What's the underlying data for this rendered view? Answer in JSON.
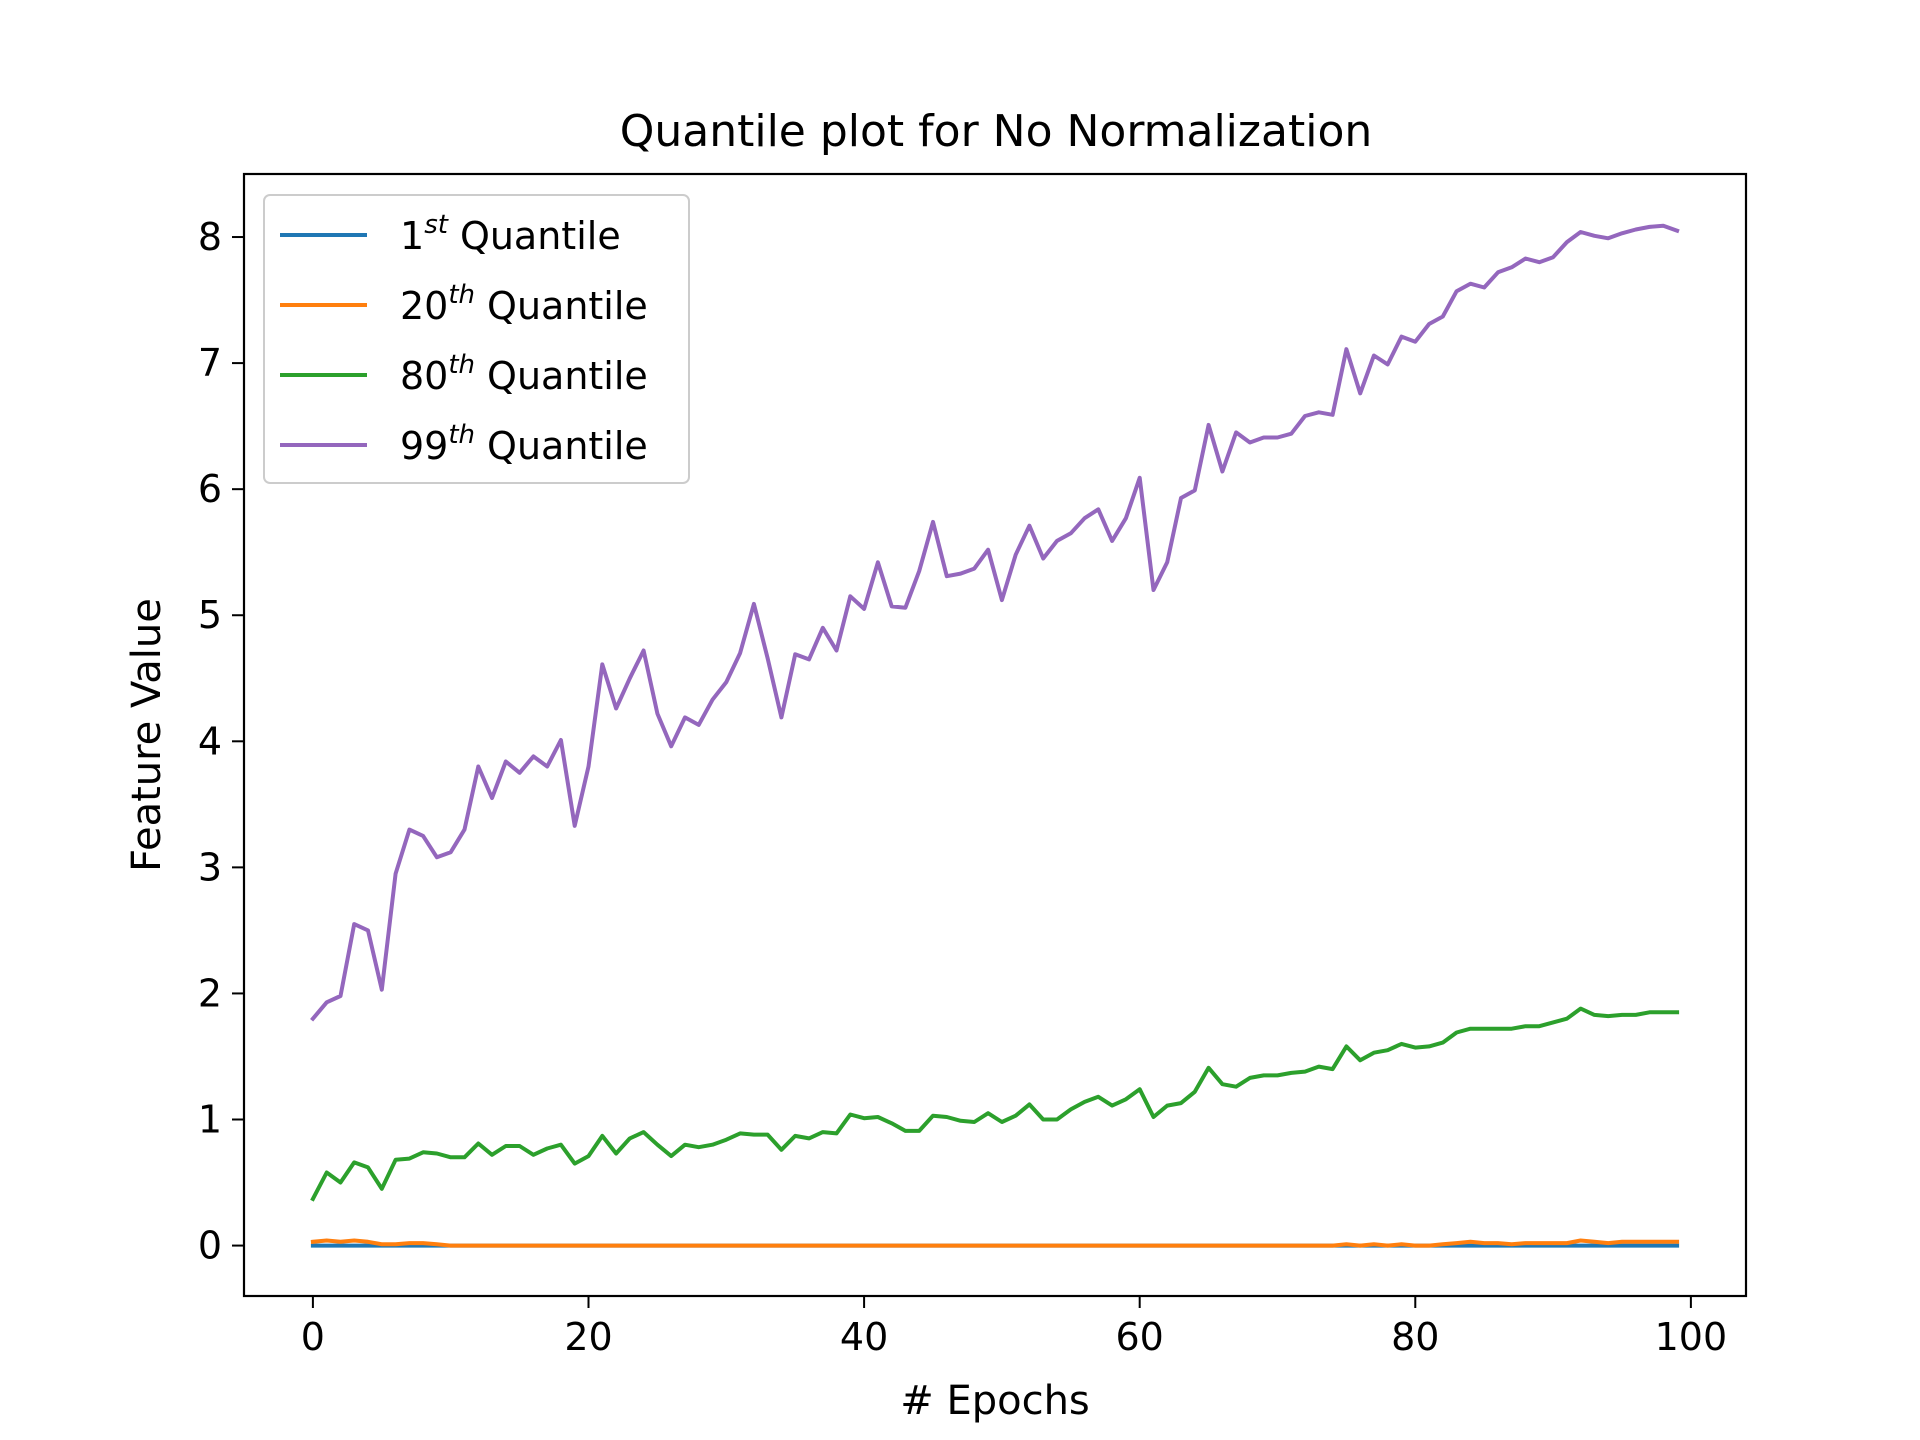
{
  "chart_data": {
    "type": "line",
    "title": "Quantile plot for No Normalization",
    "xlabel": "# Epochs",
    "ylabel": "Feature Value",
    "xlim": [
      -5,
      104
    ],
    "ylim": [
      -0.4,
      8.5
    ],
    "xticks": [
      0,
      20,
      40,
      60,
      80,
      100
    ],
    "yticks": [
      0,
      1,
      2,
      3,
      4,
      5,
      6,
      7,
      8
    ],
    "grid": false,
    "legend_position": "top-left",
    "legend": [
      {
        "base": "1",
        "sup": "st",
        "text": "Quantile"
      },
      {
        "base": "20",
        "sup": "th",
        "text": "Quantile"
      },
      {
        "base": "80",
        "sup": "th",
        "text": "Quantile"
      },
      {
        "base": "99",
        "sup": "th",
        "text": "Quantile"
      }
    ],
    "x": [
      0,
      1,
      2,
      3,
      4,
      5,
      6,
      7,
      8,
      9,
      10,
      11,
      12,
      13,
      14,
      15,
      16,
      17,
      18,
      19,
      20,
      21,
      22,
      23,
      24,
      25,
      26,
      27,
      28,
      29,
      30,
      31,
      32,
      33,
      34,
      35,
      36,
      37,
      38,
      39,
      40,
      41,
      42,
      43,
      44,
      45,
      46,
      47,
      48,
      49,
      50,
      51,
      52,
      53,
      54,
      55,
      56,
      57,
      58,
      59,
      60,
      61,
      62,
      63,
      64,
      65,
      66,
      67,
      68,
      69,
      70,
      71,
      72,
      73,
      74,
      75,
      76,
      77,
      78,
      79,
      80,
      81,
      82,
      83,
      84,
      85,
      86,
      87,
      88,
      89,
      90,
      91,
      92,
      93,
      94,
      95,
      96,
      97,
      98,
      99
    ],
    "series": [
      {
        "color": "#1f77b4",
        "values": [
          0,
          0,
          0,
          0,
          0,
          0,
          0,
          0,
          0,
          0,
          0,
          0,
          0,
          0,
          0,
          0,
          0,
          0,
          0,
          0,
          0,
          0,
          0,
          0,
          0,
          0,
          0,
          0,
          0,
          0,
          0,
          0,
          0,
          0,
          0,
          0,
          0,
          0,
          0,
          0,
          0,
          0,
          0,
          0,
          0,
          0,
          0,
          0,
          0,
          0,
          0,
          0,
          0,
          0,
          0,
          0,
          0,
          0,
          0,
          0,
          0,
          0,
          0,
          0,
          0,
          0,
          0,
          0,
          0,
          0,
          0,
          0,
          0,
          0,
          0,
          0,
          0,
          0,
          0,
          0,
          0,
          0,
          0,
          0,
          0,
          0,
          0,
          0,
          0,
          0,
          0,
          0,
          0,
          0,
          0,
          0,
          0,
          0,
          0,
          0
        ]
      },
      {
        "color": "#ff7f0e",
        "values": [
          0.03,
          0.04,
          0.03,
          0.04,
          0.03,
          0.01,
          0.01,
          0.02,
          0.02,
          0.01,
          0,
          0,
          0,
          0,
          0,
          0,
          0,
          0,
          0,
          0,
          0,
          0,
          0,
          0,
          0,
          0,
          0,
          0,
          0,
          0,
          0,
          0,
          0,
          0,
          0,
          0,
          0,
          0,
          0,
          0,
          0,
          0,
          0,
          0,
          0,
          0,
          0,
          0,
          0,
          0,
          0,
          0,
          0,
          0,
          0,
          0,
          0,
          0,
          0,
          0,
          0,
          0,
          0,
          0,
          0,
          0,
          0,
          0,
          0,
          0,
          0,
          0,
          0,
          0,
          0,
          0.01,
          0,
          0.01,
          0,
          0.01,
          0,
          0,
          0.01,
          0.02,
          0.03,
          0.02,
          0.02,
          0.01,
          0.02,
          0.02,
          0.02,
          0.02,
          0.04,
          0.03,
          0.02,
          0.03,
          0.03,
          0.03,
          0.03,
          0.03
        ]
      },
      {
        "color": "#2ca02c",
        "values": [
          0.37,
          0.58,
          0.5,
          0.66,
          0.62,
          0.45,
          0.68,
          0.69,
          0.74,
          0.73,
          0.7,
          0.7,
          0.81,
          0.72,
          0.79,
          0.79,
          0.72,
          0.77,
          0.8,
          0.65,
          0.71,
          0.87,
          0.73,
          0.85,
          0.9,
          0.8,
          0.71,
          0.8,
          0.78,
          0.8,
          0.84,
          0.89,
          0.88,
          0.88,
          0.76,
          0.87,
          0.85,
          0.9,
          0.89,
          1.04,
          1.01,
          1.02,
          0.97,
          0.91,
          0.91,
          1.03,
          1.02,
          0.99,
          0.98,
          1.05,
          0.98,
          1.03,
          1.12,
          1.0,
          1.0,
          1.08,
          1.14,
          1.18,
          1.11,
          1.16,
          1.24,
          1.02,
          1.11,
          1.13,
          1.22,
          1.41,
          1.28,
          1.26,
          1.33,
          1.35,
          1.35,
          1.37,
          1.38,
          1.42,
          1.4,
          1.58,
          1.47,
          1.53,
          1.55,
          1.6,
          1.57,
          1.58,
          1.61,
          1.69,
          1.72,
          1.72,
          1.72,
          1.72,
          1.74,
          1.74,
          1.77,
          1.8,
          1.88,
          1.83,
          1.82,
          1.83,
          1.83,
          1.85,
          1.85,
          1.85
        ]
      },
      {
        "color": "#9467bd",
        "values": [
          1.8,
          1.93,
          1.98,
          2.55,
          2.5,
          2.03,
          2.95,
          3.3,
          3.25,
          3.08,
          3.12,
          3.3,
          3.8,
          3.55,
          3.84,
          3.75,
          3.88,
          3.8,
          4.01,
          3.33,
          3.8,
          4.61,
          4.26,
          4.5,
          4.72,
          4.22,
          3.96,
          4.19,
          4.13,
          4.33,
          4.47,
          4.7,
          5.09,
          4.66,
          4.19,
          4.69,
          4.65,
          4.9,
          4.72,
          5.15,
          5.05,
          5.42,
          5.07,
          5.06,
          5.35,
          5.74,
          5.31,
          5.33,
          5.37,
          5.52,
          5.12,
          5.48,
          5.71,
          5.45,
          5.59,
          5.65,
          5.77,
          5.84,
          5.59,
          5.77,
          6.09,
          5.2,
          5.42,
          5.93,
          5.99,
          6.51,
          6.14,
          6.45,
          6.37,
          6.41,
          6.41,
          6.44,
          6.58,
          6.61,
          6.59,
          7.11,
          6.76,
          7.06,
          6.99,
          7.21,
          7.17,
          7.31,
          7.37,
          7.57,
          7.63,
          7.6,
          7.72,
          7.76,
          7.83,
          7.8,
          7.84,
          7.96,
          8.04,
          8.01,
          7.99,
          8.03,
          8.06,
          8.08,
          8.09,
          8.05
        ]
      }
    ]
  }
}
